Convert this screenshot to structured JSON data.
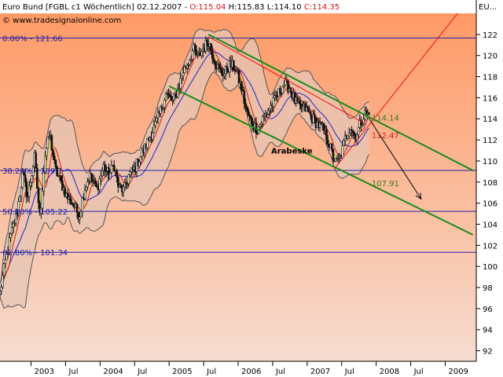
{
  "chart_data": {
    "type": "candlestick",
    "header": {
      "instrument": "Euro Bund [FGBL c1  Wöchentlich]",
      "date": "02.12.2007",
      "open_label": "O:115.04",
      "high_label": "H:115.83",
      "low_label": "L:114.10",
      "close_label": "C:114.35",
      "watermark": "© www.tradesignalonline.com",
      "axis_corner": "EU..."
    },
    "ylim": [
      91,
      124
    ],
    "xlim": [
      2002.55,
      2009.45
    ],
    "y_ticks": [
      92,
      94,
      96,
      98,
      100,
      102,
      104,
      106,
      108,
      110,
      112,
      114,
      116,
      118,
      120,
      122
    ],
    "x_ticks": [
      {
        "x": 2003.0,
        "label": "2003"
      },
      {
        "x": 2003.5,
        "label": "Jul"
      },
      {
        "x": 2004.0,
        "label": "2004"
      },
      {
        "x": 2004.5,
        "label": "Jul"
      },
      {
        "x": 2005.0,
        "label": "2005"
      },
      {
        "x": 2005.5,
        "label": "Jul"
      },
      {
        "x": 2006.0,
        "label": "2006"
      },
      {
        "x": 2006.5,
        "label": "Jul"
      },
      {
        "x": 2007.0,
        "label": "2007"
      },
      {
        "x": 2007.5,
        "label": "Jul"
      },
      {
        "x": 2008.0,
        "label": "2008"
      },
      {
        "x": 2008.5,
        "label": "Jul"
      },
      {
        "x": 2009.0,
        "label": "2009"
      }
    ],
    "fib_levels": [
      {
        "value": 121.66,
        "label": "0.00% - 121.66"
      },
      {
        "value": 109.1,
        "label": "38.20% - 109.1"
      },
      {
        "value": 105.22,
        "label": "50.00% - 105.22"
      },
      {
        "value": 101.34,
        "label": "61.80% - 101.34"
      }
    ],
    "price_path": [
      [
        2002.55,
        97.5
      ],
      [
        2002.62,
        100.2
      ],
      [
        2002.7,
        102.8
      ],
      [
        2002.8,
        105.2
      ],
      [
        2002.88,
        108.8
      ],
      [
        2002.95,
        106.5
      ],
      [
        2003.05,
        110.3
      ],
      [
        2003.13,
        104.5
      ],
      [
        2003.2,
        110.5
      ],
      [
        2003.27,
        112.6
      ],
      [
        2003.35,
        109.2
      ],
      [
        2003.43,
        108.0
      ],
      [
        2003.52,
        106.6
      ],
      [
        2003.6,
        106.0
      ],
      [
        2003.7,
        104.8
      ],
      [
        2003.77,
        107.3
      ],
      [
        2003.85,
        108.6
      ],
      [
        2003.95,
        107.3
      ],
      [
        2004.05,
        109.5
      ],
      [
        2004.13,
        108.6
      ],
      [
        2004.2,
        109.7
      ],
      [
        2004.27,
        107.4
      ],
      [
        2004.35,
        107.2
      ],
      [
        2004.42,
        108.7
      ],
      [
        2004.5,
        109.3
      ],
      [
        2004.6,
        110.6
      ],
      [
        2004.7,
        112.0
      ],
      [
        2004.8,
        113.4
      ],
      [
        2004.88,
        114.8
      ],
      [
        2004.95,
        116.4
      ],
      [
        2005.05,
        115.6
      ],
      [
        2005.13,
        116.8
      ],
      [
        2005.2,
        118.5
      ],
      [
        2005.28,
        119.4
      ],
      [
        2005.35,
        120.6
      ],
      [
        2005.42,
        119.8
      ],
      [
        2005.5,
        120.7
      ],
      [
        2005.57,
        121.4
      ],
      [
        2005.63,
        120.1
      ],
      [
        2005.72,
        118.6
      ],
      [
        2005.8,
        118.3
      ],
      [
        2005.88,
        119.1
      ],
      [
        2005.95,
        118.9
      ],
      [
        2006.05,
        116.9
      ],
      [
        2006.12,
        114.7
      ],
      [
        2006.2,
        113.6
      ],
      [
        2006.28,
        113.0
      ],
      [
        2006.36,
        114.0
      ],
      [
        2006.44,
        114.9
      ],
      [
        2006.52,
        115.6
      ],
      [
        2006.6,
        116.6
      ],
      [
        2006.66,
        117.3
      ],
      [
        2006.74,
        117.0
      ],
      [
        2006.82,
        115.7
      ],
      [
        2006.9,
        115.0
      ],
      [
        2006.98,
        114.9
      ],
      [
        2007.07,
        114.1
      ],
      [
        2007.15,
        113.5
      ],
      [
        2007.23,
        113.0
      ],
      [
        2007.3,
        112.0
      ],
      [
        2007.37,
        110.5
      ],
      [
        2007.42,
        109.8
      ],
      [
        2007.48,
        110.3
      ],
      [
        2007.55,
        112.1
      ],
      [
        2007.62,
        113.3
      ],
      [
        2007.7,
        112.2
      ],
      [
        2007.77,
        113.6
      ],
      [
        2007.84,
        114.5
      ],
      [
        2007.9,
        114.35
      ]
    ],
    "channel_upper": [
      [
        2005.57,
        122.0
      ],
      [
        2009.4,
        109.1
      ]
    ],
    "channel_lower": [
      [
        2005.0,
        117.1
      ],
      [
        2009.4,
        103.0
      ]
    ],
    "red_trend_up": [
      [
        2007.4,
        109.3
      ],
      [
        2009.3,
        125.0
      ]
    ],
    "red_trend_down": [
      [
        2005.57,
        121.8
      ],
      [
        2007.85,
        113.5
      ]
    ],
    "forecast_arrow": [
      [
        2007.9,
        114.0
      ],
      [
        2008.65,
        106.4
      ]
    ],
    "annotations": [
      {
        "text": "114.14",
        "x": 2007.9,
        "y": 114.14,
        "color": "#3a7a1a"
      },
      {
        "text": "112.47",
        "x": 2007.9,
        "y": 112.47,
        "color": "#cc2020"
      },
      {
        "text": "107.91",
        "x": 2007.9,
        "y": 107.91,
        "color": "#3a7a1a"
      },
      {
        "text": "Arabeske",
        "x": 2006.82,
        "y": 111.0,
        "color": "#000000"
      }
    ],
    "colors": {
      "bg_top": "#ff9a66",
      "bg_bottom": "#f6dcd0",
      "candles": "#111111",
      "channel": "#1a8a1a",
      "red_trend": "#ee1111",
      "bollinger": "#555555",
      "band_fill": "#e6c6b6",
      "ma_red": "#dd1111",
      "ma_yellow": "#ccbb00",
      "ma_blue": "#2222cc",
      "fib_line": "#2222aa",
      "axis_bg": "#ffffff"
    },
    "grid": false,
    "legend": "none"
  }
}
